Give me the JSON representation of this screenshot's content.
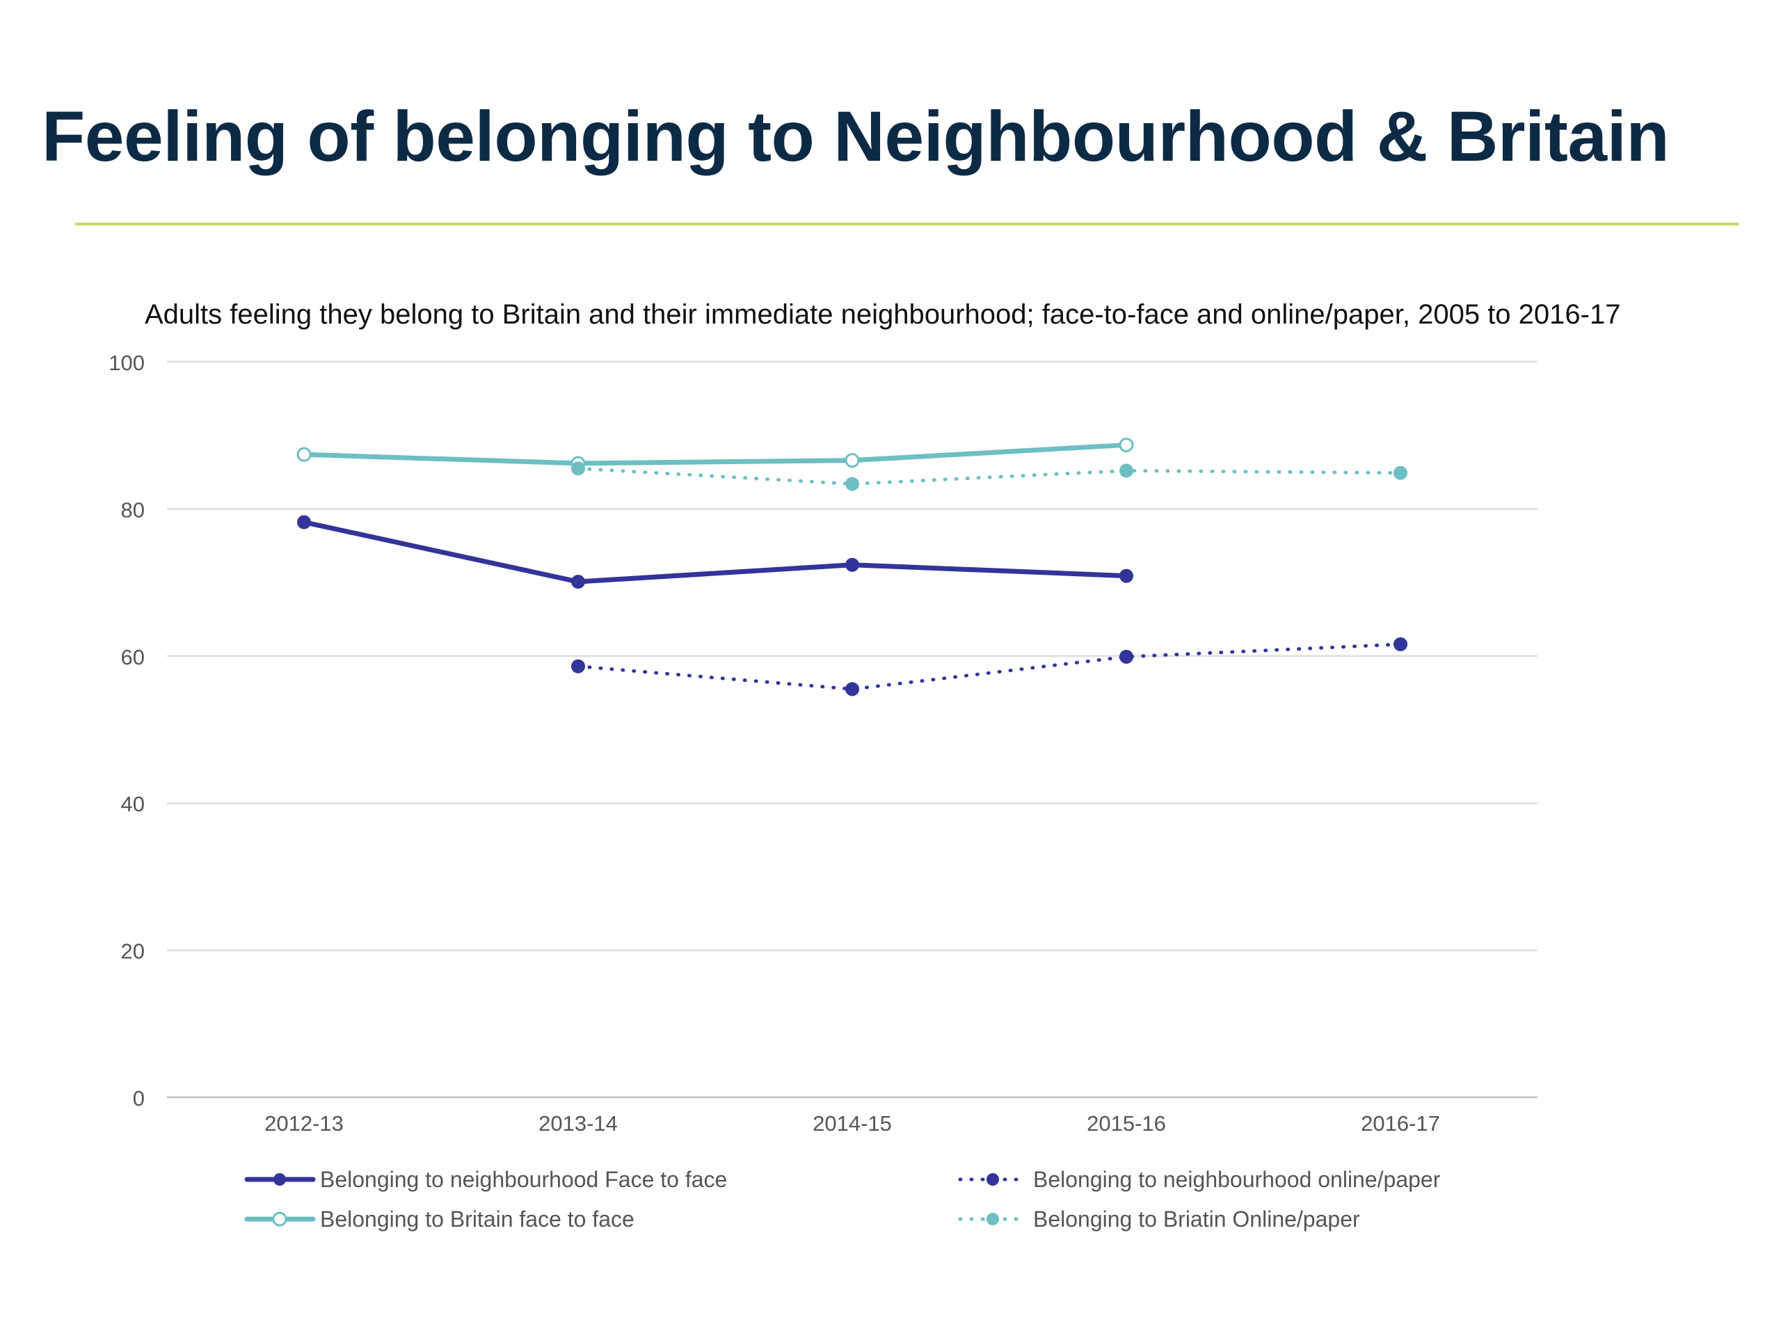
{
  "slide": {
    "title": "Feeling of belonging to Neighbourhood & Britain",
    "accent_line_color": "#c9dc6a",
    "title_color": "#0d2a45"
  },
  "chart_data": {
    "type": "line",
    "title": "Adults feeling they belong to Britain and their immediate neighbourhood; face-to-face and online/paper, 2005 to 2016-17",
    "xlabel": "",
    "ylabel": "",
    "categories": [
      "2012-13",
      "2013-14",
      "2014-15",
      "2015-16",
      "2016-17"
    ],
    "ylim": [
      0,
      100
    ],
    "yticks": [
      0,
      20,
      40,
      60,
      80,
      100
    ],
    "grid": true,
    "legend_position": "bottom",
    "series": [
      {
        "name": "Belonging to neighbourhood Face to face",
        "values": [
          78.2,
          70.1,
          72.4,
          70.9,
          null
        ],
        "color": "#33349a",
        "style": "solid",
        "marker": "filled"
      },
      {
        "name": "Belonging to neighbourhood online/paper",
        "values": [
          null,
          58.6,
          55.5,
          59.9,
          61.6
        ],
        "color": "#33349a",
        "style": "dotted",
        "marker": "filled"
      },
      {
        "name": "Belonging to Britain face to face",
        "values": [
          87.4,
          86.2,
          86.6,
          88.7,
          null
        ],
        "color": "#6dbfc3",
        "style": "solid",
        "marker": "hollow"
      },
      {
        "name": "Belonging to Briatin Online/paper",
        "values": [
          null,
          85.5,
          83.4,
          85.2,
          84.9
        ],
        "color": "#6dbfc3",
        "style": "dotted",
        "marker": "filled"
      }
    ]
  }
}
